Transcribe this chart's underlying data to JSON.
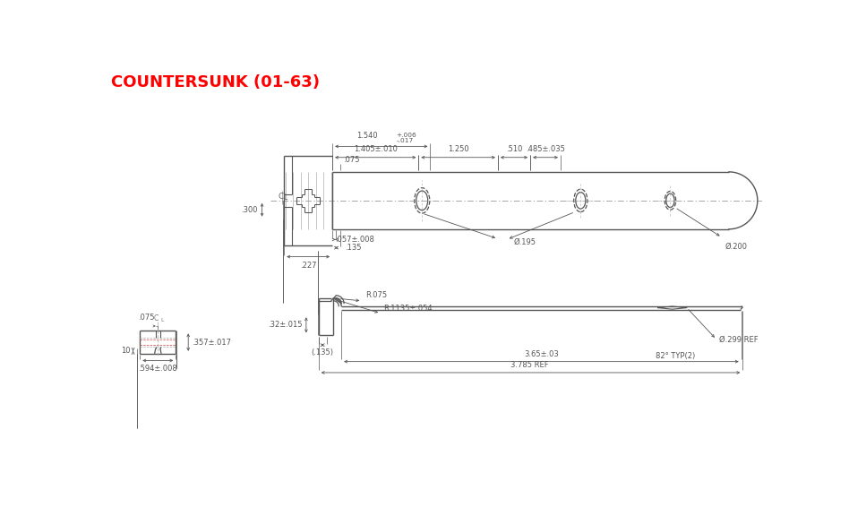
{
  "title": "COUNTERSUNK (01-63)",
  "title_color": "#FF0000",
  "bg_color": "#FFFFFF",
  "line_color": "#555555",
  "dim_color": "#555555",
  "font_size": 6.5,
  "annotations": {
    "dim_1540": "1.540",
    "dim_1540_tol": "+.006\n-.017",
    "dim_1405": "1.405±.010",
    "dim_1250": "1.250",
    "dim_510": ".510",
    "dim_485": ".485±.035",
    "dim_300": ".300",
    "dim_075_top": ".075",
    "dim_057": ".057±.008",
    "dim_135_top": ".135",
    "dim_227": ".227",
    "dim_d195": "Ø.195",
    "dim_d200": "Ø.200",
    "dim_075_bot": ".075",
    "dim_357": ".357±.017",
    "dim_594": ".594±.008",
    "dim_10": "10",
    "dim_R075": "R.075",
    "dim_R1135": "R.1135±.054",
    "dim_32": ".32±.015",
    "dim_135_bot": "(.135)",
    "dim_d299": "Ø.299 REF",
    "dim_82": "82° TYP(2)",
    "dim_365": "3.65±.03",
    "dim_3785": "3.785 REF"
  }
}
